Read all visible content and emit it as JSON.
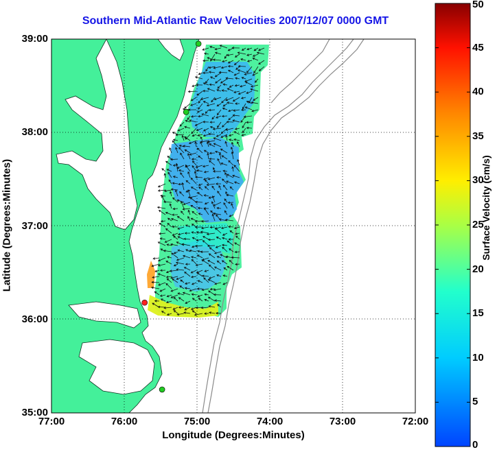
{
  "title": "Southern Mid-Atlantic Raw Velocities 2007/12/07 0000 GMT",
  "xlabel": "Longitude (Degrees:Minutes)",
  "ylabel": "Latitude (Degrees:Minutes)",
  "colorbar_label": "Surface Velocity (cm/s)",
  "colors": {
    "land": "#44f09a",
    "water": "#ffffff",
    "title": "#1515e6",
    "site_red": "#ff2020",
    "site_green": "#22cc22"
  },
  "chart_data": {
    "type": "heatmap",
    "xlim": [
      -77,
      -72
    ],
    "ylim": [
      35,
      39
    ],
    "x_ticks": [
      "77:00",
      "76:00",
      "75:00",
      "74:00",
      "73:00",
      "72:00"
    ],
    "y_ticks": [
      "35:00",
      "36:00",
      "37:00",
      "38:00",
      "39:00"
    ],
    "grid": true,
    "colorbar": {
      "range": [
        0,
        50
      ],
      "ticks": [
        "0",
        "5",
        "10",
        "15",
        "20",
        "25",
        "30",
        "35",
        "40",
        "45",
        "50"
      ],
      "colormap": "jet"
    },
    "radar_sites": [
      {
        "lon": -74.98,
        "lat": 38.95,
        "status": "active"
      },
      {
        "lon": -75.15,
        "lat": 38.22,
        "status": "active"
      },
      {
        "lon": -75.72,
        "lat": 36.18,
        "status": "inactive"
      },
      {
        "lon": -75.48,
        "lat": 35.25,
        "status": "active"
      }
    ]
  }
}
